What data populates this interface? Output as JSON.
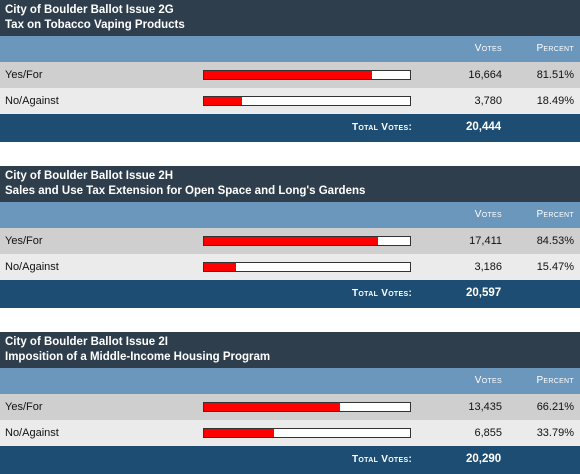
{
  "labels": {
    "votes": "Votes",
    "percent": "Percent",
    "total_votes": "Total Votes:"
  },
  "colors": {
    "header": "#2e3e4c",
    "column_header": "#6b97bd",
    "total_bar": "#1d4d72",
    "bar_fill": "#ff0000"
  },
  "issues": [
    {
      "title": "City of Boulder Ballot Issue 2G",
      "subtitle": "Tax on Tobacco Vaping Products",
      "rows": [
        {
          "choice": "Yes/For",
          "votes": "16,664",
          "percent": "81.51%",
          "fraction": 0.8151
        },
        {
          "choice": "No/Against",
          "votes": "3,780",
          "percent": "18.49%",
          "fraction": 0.1849
        }
      ],
      "total": "20,444"
    },
    {
      "title": "City of Boulder Ballot Issue 2H",
      "subtitle": "Sales and Use Tax Extension for Open Space and Long's Gardens",
      "rows": [
        {
          "choice": "Yes/For",
          "votes": "17,411",
          "percent": "84.53%",
          "fraction": 0.8453
        },
        {
          "choice": "No/Against",
          "votes": "3,186",
          "percent": "15.47%",
          "fraction": 0.1547
        }
      ],
      "total": "20,597"
    },
    {
      "title": "City of Boulder Ballot Issue 2I",
      "subtitle": "Imposition of a Middle-Income Housing Program",
      "rows": [
        {
          "choice": "Yes/For",
          "votes": "13,435",
          "percent": "66.21%",
          "fraction": 0.6621
        },
        {
          "choice": "No/Against",
          "votes": "6,855",
          "percent": "33.79%",
          "fraction": 0.3379
        }
      ],
      "total": "20,290"
    }
  ]
}
